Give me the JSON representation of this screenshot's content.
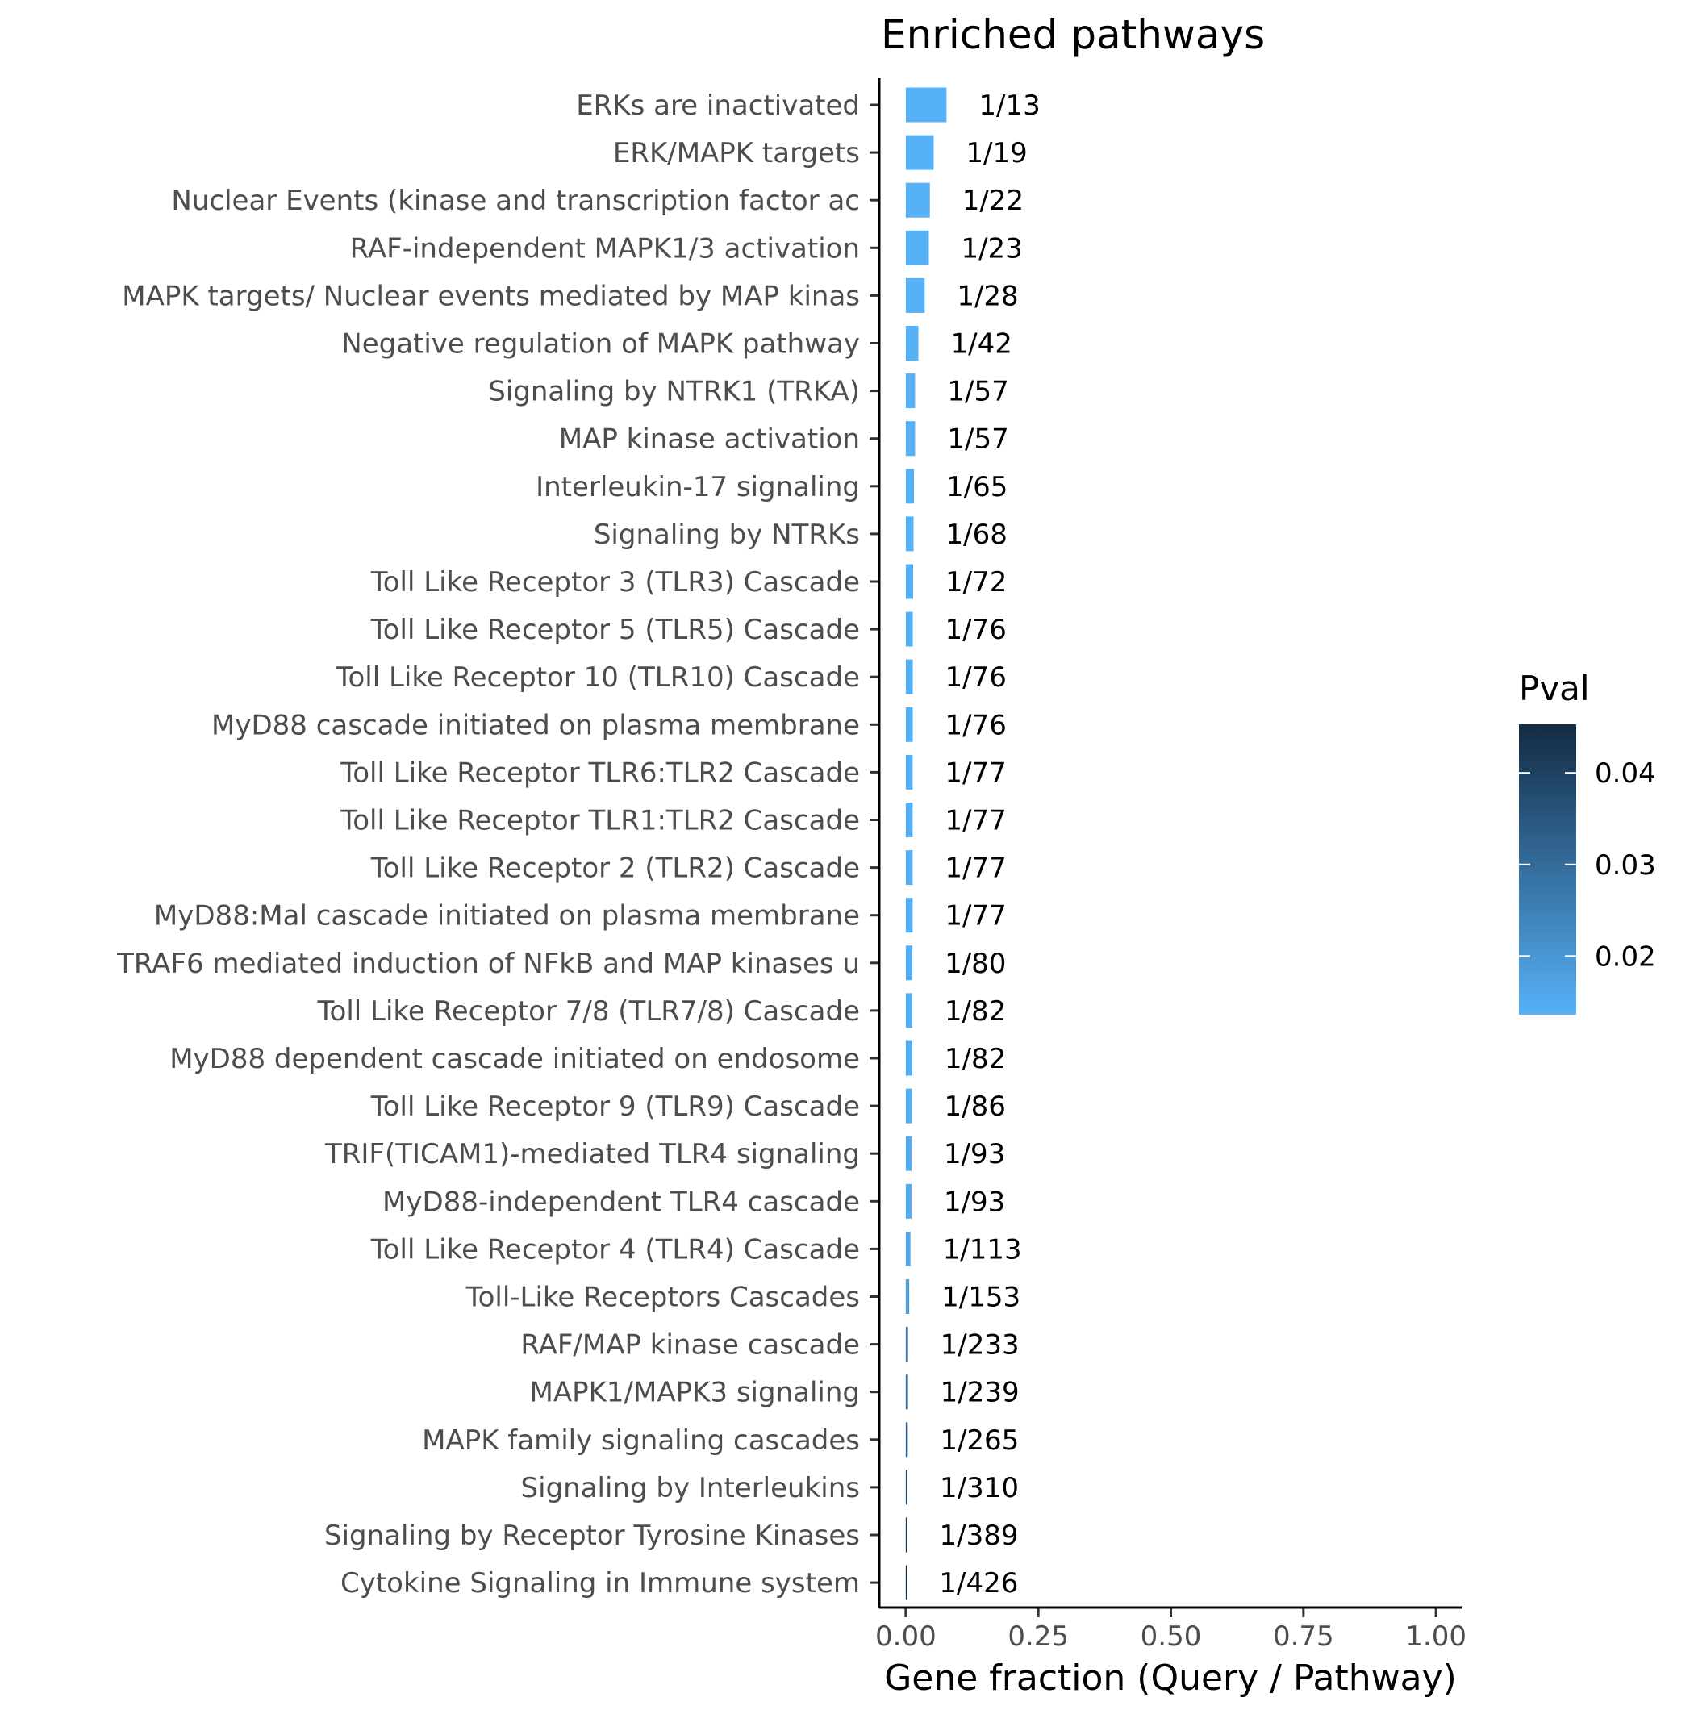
{
  "chart_data": {
    "type": "bar",
    "orientation": "horizontal",
    "title": "Enriched pathways",
    "xlabel": "Gene fraction (Query / Pathway)",
    "ylabel": "",
    "xlim": [
      -0.05,
      1.05
    ],
    "xticks": [
      0.0,
      0.25,
      0.5,
      0.75,
      1.0
    ],
    "xtick_labels": [
      "0.00",
      "0.25",
      "0.50",
      "0.75",
      "1.00"
    ],
    "grid": false,
    "legend": {
      "title": "Pval",
      "placement": "right",
      "type": "colorbar",
      "range": [
        0.0136,
        0.0453
      ],
      "ticks": [
        0.02,
        0.03,
        0.04
      ],
      "tick_labels": [
        "0.02",
        "0.03",
        "0.04"
      ],
      "color_low": "#56b1f7",
      "color_high": "#132b43"
    },
    "bars": [
      {
        "category": "ERKs are inactivated",
        "value": 0.0769,
        "label": "1/13",
        "pval": 0.0136
      },
      {
        "category": "ERK/MAPK targets",
        "value": 0.0526,
        "label": "1/19",
        "pval": 0.0136
      },
      {
        "category": "Nuclear Events (kinase and transcription factor ac",
        "value": 0.0455,
        "label": "1/22",
        "pval": 0.0136
      },
      {
        "category": "RAF-independent MAPK1/3 activation",
        "value": 0.0435,
        "label": "1/23",
        "pval": 0.0136
      },
      {
        "category": "MAPK targets/ Nuclear events mediated by MAP kinas",
        "value": 0.0357,
        "label": "1/28",
        "pval": 0.0136
      },
      {
        "category": "Negative regulation of MAPK pathway",
        "value": 0.0238,
        "label": "1/42",
        "pval": 0.0136
      },
      {
        "category": "Signaling by NTRK1 (TRKA)",
        "value": 0.0175,
        "label": "1/57",
        "pval": 0.0137
      },
      {
        "category": "MAP kinase activation",
        "value": 0.0175,
        "label": "1/57",
        "pval": 0.0137
      },
      {
        "category": "Interleukin-17 signaling",
        "value": 0.0154,
        "label": "1/65",
        "pval": 0.0138
      },
      {
        "category": "Signaling by NTRKs",
        "value": 0.0147,
        "label": "1/68",
        "pval": 0.0139
      },
      {
        "category": "Toll Like Receptor 3 (TLR3) Cascade",
        "value": 0.0139,
        "label": "1/72",
        "pval": 0.014
      },
      {
        "category": "Toll Like Receptor 5 (TLR5) Cascade",
        "value": 0.0132,
        "label": "1/76",
        "pval": 0.0141
      },
      {
        "category": "Toll Like Receptor 10 (TLR10) Cascade",
        "value": 0.0132,
        "label": "1/76",
        "pval": 0.0141
      },
      {
        "category": "MyD88 cascade initiated on plasma membrane",
        "value": 0.0132,
        "label": "1/76",
        "pval": 0.0141
      },
      {
        "category": "Toll Like Receptor TLR6:TLR2 Cascade",
        "value": 0.013,
        "label": "1/77",
        "pval": 0.0142
      },
      {
        "category": "Toll Like Receptor TLR1:TLR2 Cascade",
        "value": 0.013,
        "label": "1/77",
        "pval": 0.0142
      },
      {
        "category": "Toll Like Receptor 2 (TLR2) Cascade",
        "value": 0.013,
        "label": "1/77",
        "pval": 0.0142
      },
      {
        "category": "MyD88:Mal cascade initiated on plasma membrane",
        "value": 0.013,
        "label": "1/77",
        "pval": 0.0142
      },
      {
        "category": "TRAF6 mediated induction of NFkB and MAP kinases u",
        "value": 0.0125,
        "label": "1/80",
        "pval": 0.0143
      },
      {
        "category": "Toll Like Receptor 7/8 (TLR7/8) Cascade",
        "value": 0.0122,
        "label": "1/82",
        "pval": 0.0144
      },
      {
        "category": "MyD88 dependent cascade initiated on endosome",
        "value": 0.0122,
        "label": "1/82",
        "pval": 0.0144
      },
      {
        "category": "Toll Like Receptor 9 (TLR9) Cascade",
        "value": 0.0116,
        "label": "1/86",
        "pval": 0.0146
      },
      {
        "category": "TRIF(TICAM1)-mediated TLR4 signaling ",
        "value": 0.0108,
        "label": "1/93",
        "pval": 0.0149
      },
      {
        "category": "MyD88-independent TLR4 cascade ",
        "value": 0.0108,
        "label": "1/93",
        "pval": 0.0149
      },
      {
        "category": "Toll Like Receptor 4 (TLR4) Cascade",
        "value": 0.00885,
        "label": "1/113",
        "pval": 0.0157
      },
      {
        "category": "Toll-Like Receptors Cascades",
        "value": 0.00654,
        "label": "1/153",
        "pval": 0.0188
      },
      {
        "category": "RAF/MAP kinase cascade",
        "value": 0.00429,
        "label": "1/233",
        "pval": 0.029
      },
      {
        "category": "MAPK1/MAPK3 signaling",
        "value": 0.00418,
        "label": "1/239",
        "pval": 0.0297
      },
      {
        "category": "MAPK family signaling cascades",
        "value": 0.00377,
        "label": "1/265",
        "pval": 0.0327
      },
      {
        "category": "Signaling by Interleukins",
        "value": 0.00323,
        "label": "1/310",
        "pval": 0.0375
      },
      {
        "category": "Signaling by Receptor Tyrosine Kinases",
        "value": 0.00257,
        "label": "1/389",
        "pval": 0.044
      },
      {
        "category": "Cytokine Signaling in Immune system",
        "value": 0.00235,
        "label": "1/426",
        "pval": 0.0453
      }
    ]
  }
}
